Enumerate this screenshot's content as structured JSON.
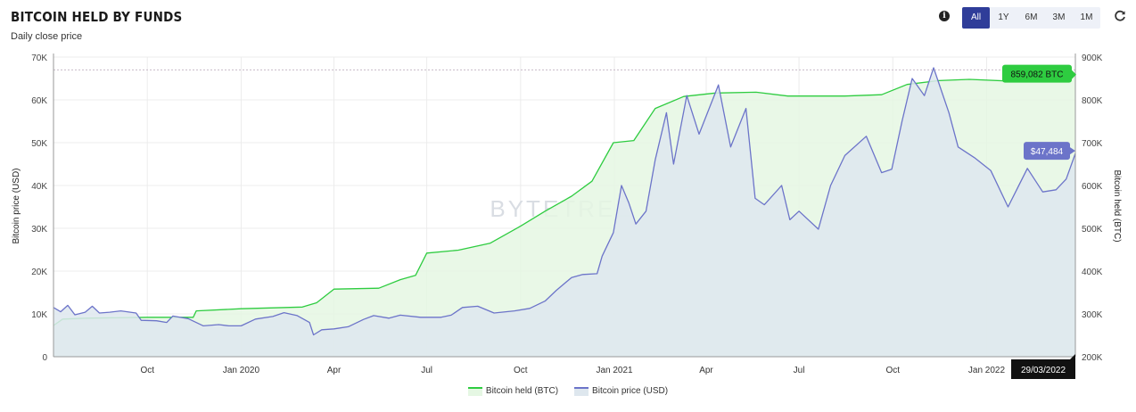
{
  "header": {
    "title": "BITCOIN HELD BY FUNDS",
    "subtitle": "Daily close price",
    "info_icon": "info-icon",
    "refresh_icon": "refresh-icon",
    "ranges": [
      "All",
      "1Y",
      "6M",
      "3M",
      "1M"
    ],
    "active_range": "All"
  },
  "watermark": "BYTETREE",
  "legend": {
    "btc_held": "Bitcoin held (BTC)",
    "price": "Bitcoin price (USD)"
  },
  "chart_data": {
    "type": "area",
    "xlabel": "",
    "ylabel": "Bitcoin price (USD)",
    "y2label": "Bitcoin held (BTC)",
    "ylim": [
      0,
      70000
    ],
    "y2lim": [
      200000,
      900000
    ],
    "x_range": [
      "2019-07-01",
      "2022-03-29"
    ],
    "x_ticks": [
      {
        "date": "2019-10-01",
        "label": "Oct"
      },
      {
        "date": "2020-01-01",
        "label": "Jan 2020"
      },
      {
        "date": "2020-04-01",
        "label": "Apr"
      },
      {
        "date": "2020-07-01",
        "label": "Jul"
      },
      {
        "date": "2020-10-01",
        "label": "Oct"
      },
      {
        "date": "2021-01-01",
        "label": "Jan 2021"
      },
      {
        "date": "2021-04-01",
        "label": "Apr"
      },
      {
        "date": "2021-07-01",
        "label": "Jul"
      },
      {
        "date": "2021-10-01",
        "label": "Oct"
      },
      {
        "date": "2022-01-01",
        "label": "Jan 2022"
      }
    ],
    "y_ticks": [
      {
        "v": 0,
        "label": "0"
      },
      {
        "v": 10000,
        "label": "10K"
      },
      {
        "v": 20000,
        "label": "20K"
      },
      {
        "v": 30000,
        "label": "30K"
      },
      {
        "v": 40000,
        "label": "40K"
      },
      {
        "v": 50000,
        "label": "50K"
      },
      {
        "v": 60000,
        "label": "60K"
      },
      {
        "v": 70000,
        "label": "70K"
      }
    ],
    "y2_ticks": [
      {
        "v": 200000,
        "label": "200K"
      },
      {
        "v": 300000,
        "label": "300K"
      },
      {
        "v": 400000,
        "label": "400K"
      },
      {
        "v": 500000,
        "label": "500K"
      },
      {
        "v": 600000,
        "label": "600K"
      },
      {
        "v": 700000,
        "label": "700K"
      },
      {
        "v": 800000,
        "label": "800K"
      },
      {
        "v": 900000,
        "label": "900K"
      }
    ],
    "ath_line": 67000,
    "series": [
      {
        "name": "Bitcoin held (BTC)",
        "axis": "right",
        "color": "#2ecc40",
        "fill": "#e5f7e3",
        "points": [
          [
            "2019-07-01",
            273000
          ],
          [
            "2019-07-10",
            288000
          ],
          [
            "2019-08-01",
            290000
          ],
          [
            "2019-10-01",
            292000
          ],
          [
            "2019-11-15",
            292000
          ],
          [
            "2019-11-18",
            307000
          ],
          [
            "2020-01-01",
            312000
          ],
          [
            "2020-03-01",
            316000
          ],
          [
            "2020-03-15",
            326000
          ],
          [
            "2020-04-01",
            358000
          ],
          [
            "2020-05-15",
            360000
          ],
          [
            "2020-06-05",
            380000
          ],
          [
            "2020-06-20",
            390000
          ],
          [
            "2020-07-01",
            442000
          ],
          [
            "2020-08-01",
            449000
          ],
          [
            "2020-09-01",
            465000
          ],
          [
            "2020-10-01",
            505000
          ],
          [
            "2020-10-25",
            540000
          ],
          [
            "2020-11-20",
            575000
          ],
          [
            "2020-12-10",
            610000
          ],
          [
            "2020-12-31",
            700000
          ],
          [
            "2021-01-20",
            705000
          ],
          [
            "2021-02-10",
            780000
          ],
          [
            "2021-03-10",
            808000
          ],
          [
            "2021-04-10",
            816000
          ],
          [
            "2021-05-20",
            818000
          ],
          [
            "2021-06-20",
            809000
          ],
          [
            "2021-08-15",
            809000
          ],
          [
            "2021-09-20",
            812000
          ],
          [
            "2021-10-15",
            836000
          ],
          [
            "2021-11-15",
            845000
          ],
          [
            "2021-12-15",
            848000
          ],
          [
            "2022-02-10",
            842000
          ],
          [
            "2022-03-29",
            859082
          ]
        ]
      },
      {
        "name": "Bitcoin price (USD)",
        "axis": "left",
        "color": "#6c74c9",
        "fill": "#dee7ee",
        "points": [
          [
            "2019-07-01",
            11500
          ],
          [
            "2019-07-08",
            10500
          ],
          [
            "2019-07-15",
            12000
          ],
          [
            "2019-07-22",
            9800
          ],
          [
            "2019-08-01",
            10400
          ],
          [
            "2019-08-08",
            11800
          ],
          [
            "2019-08-15",
            10200
          ],
          [
            "2019-08-25",
            10400
          ],
          [
            "2019-09-05",
            10700
          ],
          [
            "2019-09-20",
            10200
          ],
          [
            "2019-09-25",
            8500
          ],
          [
            "2019-10-10",
            8400
          ],
          [
            "2019-10-20",
            8000
          ],
          [
            "2019-10-26",
            9500
          ],
          [
            "2019-11-10",
            8900
          ],
          [
            "2019-11-25",
            7200
          ],
          [
            "2019-12-10",
            7500
          ],
          [
            "2019-12-20",
            7200
          ],
          [
            "2020-01-01",
            7200
          ],
          [
            "2020-01-15",
            8800
          ],
          [
            "2020-02-01",
            9400
          ],
          [
            "2020-02-12",
            10300
          ],
          [
            "2020-02-25",
            9600
          ],
          [
            "2020-03-08",
            8000
          ],
          [
            "2020-03-12",
            5100
          ],
          [
            "2020-03-20",
            6300
          ],
          [
            "2020-04-01",
            6500
          ],
          [
            "2020-04-15",
            7000
          ],
          [
            "2020-04-30",
            8700
          ],
          [
            "2020-05-10",
            9600
          ],
          [
            "2020-05-25",
            9000
          ],
          [
            "2020-06-05",
            9700
          ],
          [
            "2020-06-25",
            9200
          ],
          [
            "2020-07-15",
            9200
          ],
          [
            "2020-07-25",
            9700
          ],
          [
            "2020-08-05",
            11500
          ],
          [
            "2020-08-20",
            11800
          ],
          [
            "2020-09-05",
            10200
          ],
          [
            "2020-09-25",
            10700
          ],
          [
            "2020-10-10",
            11300
          ],
          [
            "2020-10-25",
            13000
          ],
          [
            "2020-11-05",
            15500
          ],
          [
            "2020-11-20",
            18500
          ],
          [
            "2020-12-01",
            19200
          ],
          [
            "2020-12-15",
            19400
          ],
          [
            "2020-12-20",
            23500
          ],
          [
            "2020-12-31",
            29000
          ],
          [
            "2021-01-08",
            40000
          ],
          [
            "2021-01-15",
            36000
          ],
          [
            "2021-01-22",
            31000
          ],
          [
            "2021-02-01",
            34000
          ],
          [
            "2021-02-10",
            46000
          ],
          [
            "2021-02-21",
            57000
          ],
          [
            "2021-02-28",
            45000
          ],
          [
            "2021-03-13",
            61000
          ],
          [
            "2021-03-25",
            52000
          ],
          [
            "2021-04-13",
            63500
          ],
          [
            "2021-04-25",
            49000
          ],
          [
            "2021-05-10",
            58000
          ],
          [
            "2021-05-19",
            37000
          ],
          [
            "2021-05-28",
            35500
          ],
          [
            "2021-06-14",
            40000
          ],
          [
            "2021-06-22",
            32000
          ],
          [
            "2021-07-01",
            34000
          ],
          [
            "2021-07-20",
            29800
          ],
          [
            "2021-08-01",
            40000
          ],
          [
            "2021-08-15",
            47000
          ],
          [
            "2021-09-05",
            51500
          ],
          [
            "2021-09-20",
            43000
          ],
          [
            "2021-09-30",
            43800
          ],
          [
            "2021-10-10",
            55000
          ],
          [
            "2021-10-20",
            65000
          ],
          [
            "2021-11-01",
            61000
          ],
          [
            "2021-11-10",
            67500
          ],
          [
            "2021-11-25",
            57000
          ],
          [
            "2021-12-04",
            49000
          ],
          [
            "2021-12-20",
            46500
          ],
          [
            "2022-01-05",
            43500
          ],
          [
            "2022-01-22",
            35000
          ],
          [
            "2022-02-10",
            44000
          ],
          [
            "2022-02-25",
            38500
          ],
          [
            "2022-03-10",
            39000
          ],
          [
            "2022-03-20",
            41500
          ],
          [
            "2022-03-29",
            47484
          ]
        ]
      }
    ],
    "markers": {
      "btc_held_label": "859,082 BTC",
      "price_label": "$47,484",
      "date_label": "29/03/2022"
    }
  }
}
